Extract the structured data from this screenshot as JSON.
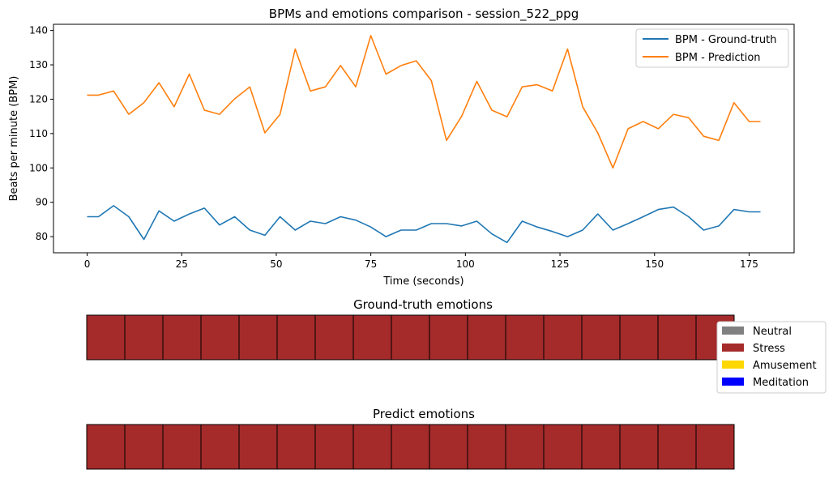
{
  "chart_data": [
    {
      "type": "line",
      "title": "BPMs and emotions comparison - session_522_ppg",
      "xlabel": "Time (seconds)",
      "ylabel": "Beats per minute (BPM)",
      "xlim": [
        -8.9,
        186.9
      ],
      "ylim": [
        75.3,
        141.8
      ],
      "xticks": [
        0,
        25,
        50,
        75,
        100,
        125,
        150,
        175
      ],
      "yticks": [
        80,
        90,
        100,
        110,
        120,
        130,
        140
      ],
      "grid": false,
      "legend_position": "top-right",
      "x": [
        0,
        3,
        7,
        11,
        15,
        19,
        23,
        27,
        31,
        35,
        39,
        43,
        47,
        51,
        55,
        59,
        63,
        67,
        71,
        75,
        79,
        83,
        87,
        91,
        95,
        99,
        103,
        107,
        111,
        115,
        119,
        123,
        127,
        131,
        135,
        139,
        143,
        147,
        151,
        155,
        159,
        163,
        167,
        171,
        175,
        178
      ],
      "series": [
        {
          "name": "BPM - Ground-truth",
          "color": "#1f77b4",
          "values": [
            85.8,
            85.8,
            89.0,
            85.8,
            79.2,
            87.5,
            84.5,
            86.6,
            88.3,
            83.4,
            85.8,
            81.9,
            80.4,
            85.8,
            81.9,
            84.5,
            83.8,
            85.8,
            84.8,
            82.8,
            80.0,
            81.9,
            81.9,
            83.8,
            83.8,
            83.1,
            84.5,
            80.8,
            78.3,
            84.5,
            82.8,
            81.5,
            80.0,
            81.9,
            86.6,
            81.9,
            83.8,
            85.8,
            87.9,
            88.6,
            85.8,
            81.9,
            83.1,
            87.9,
            87.2,
            87.2
          ]
        },
        {
          "name": "BPM - Prediction",
          "color": "#ff7f0e",
          "values": [
            121.2,
            121.2,
            122.4,
            115.6,
            119.0,
            124.8,
            117.8,
            127.3,
            116.8,
            115.6,
            120.1,
            123.6,
            110.2,
            115.6,
            134.6,
            122.4,
            123.6,
            129.8,
            123.6,
            138.5,
            127.3,
            129.8,
            131.2,
            125.4,
            108.0,
            115.0,
            125.2,
            116.8,
            114.9,
            123.6,
            124.2,
            122.4,
            134.6,
            117.8,
            110.2,
            100.0,
            111.4,
            113.5,
            111.4,
            115.6,
            114.6,
            109.2,
            108.0,
            119.0,
            113.5,
            113.5
          ]
        }
      ]
    },
    {
      "type": "heatmap",
      "title": "Ground-truth emotions",
      "categories": [
        "Stress",
        "Stress",
        "Stress",
        "Stress",
        "Stress",
        "Stress",
        "Stress",
        "Stress",
        "Stress",
        "Stress",
        "Stress",
        "Stress",
        "Stress",
        "Stress",
        "Stress",
        "Stress",
        "Stress"
      ]
    },
    {
      "type": "heatmap",
      "title": "Predict emotions",
      "categories": [
        "Stress",
        "Stress",
        "Stress",
        "Stress",
        "Stress",
        "Stress",
        "Stress",
        "Stress",
        "Stress",
        "Stress",
        "Stress",
        "Stress",
        "Stress",
        "Stress",
        "Stress",
        "Stress",
        "Stress"
      ]
    }
  ],
  "emotion_legend": [
    {
      "label": "Neutral",
      "color": "#808080"
    },
    {
      "label": "Stress",
      "color": "#a52a2a"
    },
    {
      "label": "Amusement",
      "color": "#ffd700"
    },
    {
      "label": "Meditation",
      "color": "#0000ff"
    }
  ]
}
